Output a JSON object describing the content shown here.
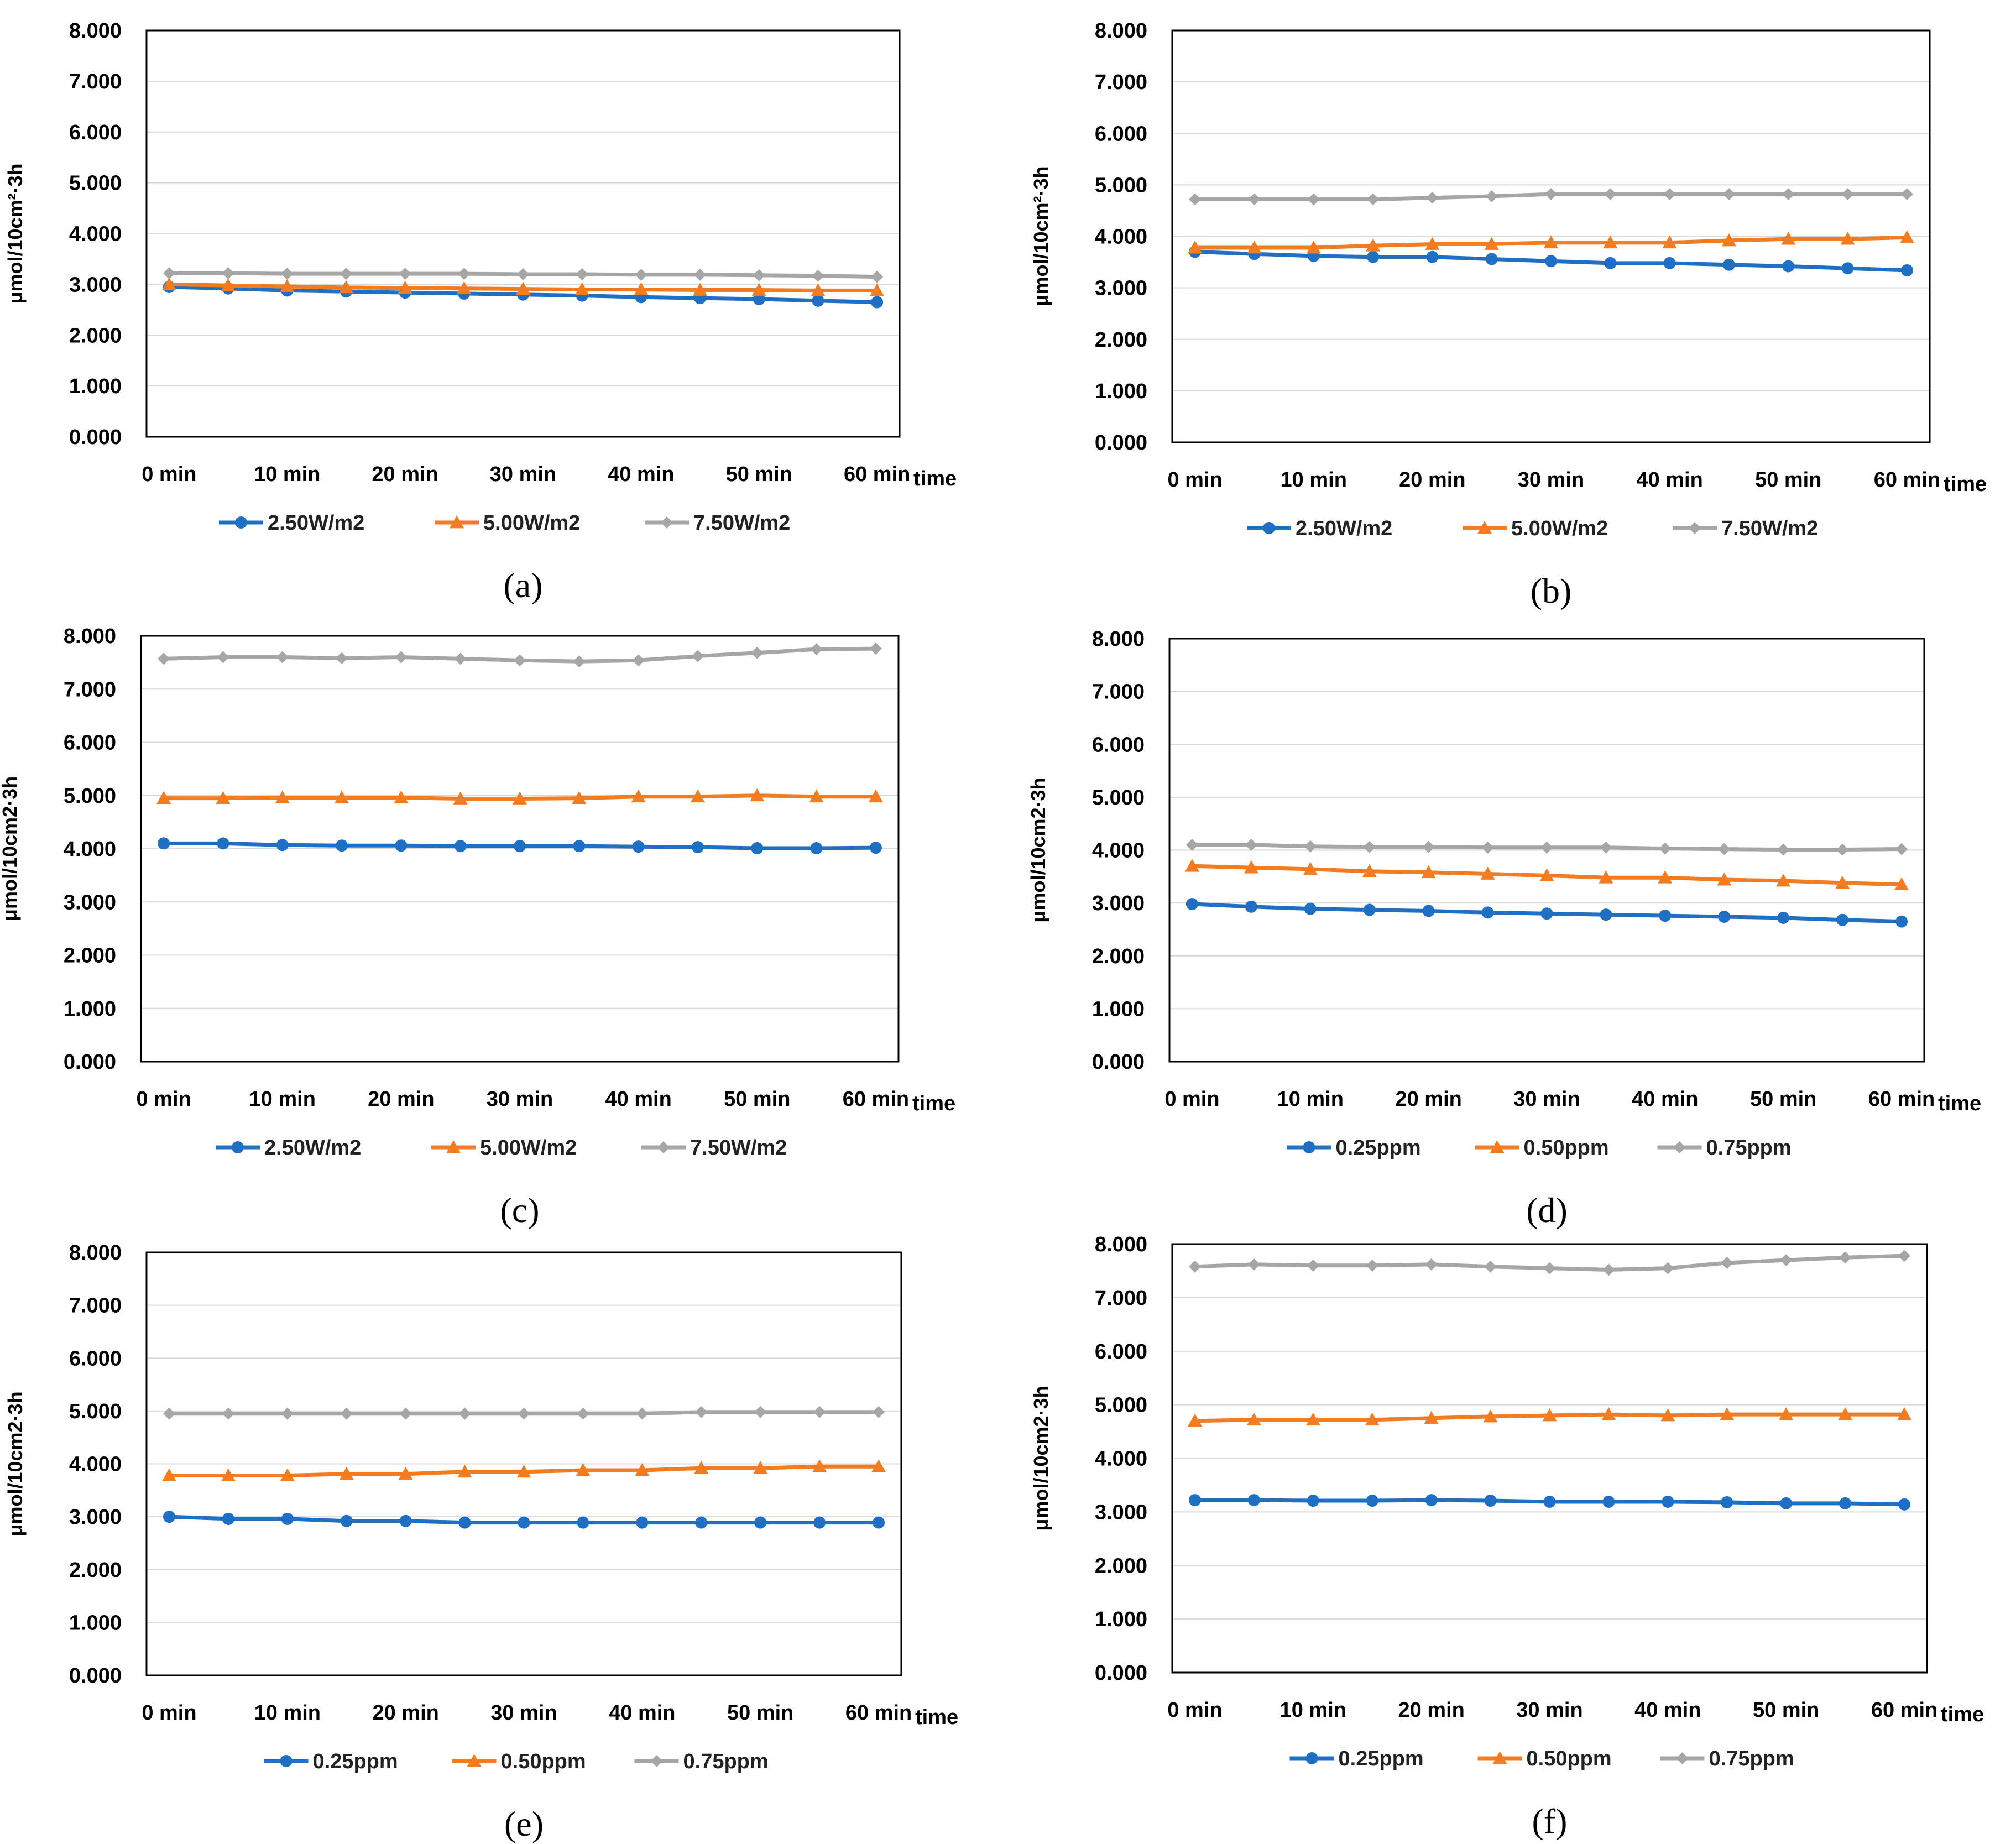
{
  "colors": {
    "blue": "#1f6fc5",
    "orange": "#f47c20",
    "gray": "#a6a6a6",
    "grid": "#d9d9d9",
    "frame": "#000000"
  },
  "chart_data": [
    {
      "caption": "(a)",
      "type": "line",
      "ylabel": "μmol/10cm²·3h",
      "xlabel": "time",
      "ylim": [
        0,
        8
      ],
      "yticks": [
        "0.000",
        "1.000",
        "2.000",
        "3.000",
        "4.000",
        "5.000",
        "6.000",
        "7.000",
        "8.000"
      ],
      "categories": [
        "0 min",
        "10 min",
        "20 min",
        "30 min",
        "40 min",
        "50 min",
        "60 min"
      ],
      "x": [
        0,
        5,
        10,
        15,
        20,
        25,
        30,
        35,
        40,
        45,
        50,
        55,
        60
      ],
      "series": [
        {
          "name": "2.50W/m2",
          "color": "blue",
          "marker": "circle",
          "values": [
            2.95,
            2.92,
            2.88,
            2.86,
            2.84,
            2.82,
            2.8,
            2.78,
            2.75,
            2.73,
            2.71,
            2.68,
            2.65
          ]
        },
        {
          "name": "5.00W/m2",
          "color": "orange",
          "marker": "triangle",
          "values": [
            3.0,
            2.98,
            2.96,
            2.94,
            2.93,
            2.92,
            2.91,
            2.9,
            2.9,
            2.89,
            2.89,
            2.88,
            2.88
          ]
        },
        {
          "name": "7.50W/m2",
          "color": "gray",
          "marker": "diamond",
          "values": [
            3.22,
            3.22,
            3.21,
            3.21,
            3.21,
            3.21,
            3.2,
            3.2,
            3.19,
            3.19,
            3.18,
            3.17,
            3.15
          ]
        }
      ]
    },
    {
      "caption": "(b)",
      "type": "line",
      "ylabel": "μmol/10cm²·3h",
      "xlabel": "time",
      "ylim": [
        0,
        8
      ],
      "yticks": [
        "0.000",
        "1.000",
        "2.000",
        "3.000",
        "4.000",
        "5.000",
        "6.000",
        "7.000",
        "8.000"
      ],
      "categories": [
        "0 min",
        "10 min",
        "20 min",
        "30 min",
        "40 min",
        "50 min",
        "60 min"
      ],
      "x": [
        0,
        5,
        10,
        15,
        20,
        25,
        30,
        35,
        40,
        45,
        50,
        55,
        60
      ],
      "series": [
        {
          "name": "2.50W/m2",
          "color": "blue",
          "marker": "circle",
          "values": [
            3.7,
            3.66,
            3.62,
            3.6,
            3.6,
            3.56,
            3.52,
            3.48,
            3.48,
            3.45,
            3.42,
            3.38,
            3.34
          ]
        },
        {
          "name": "5.00W/m2",
          "color": "orange",
          "marker": "triangle",
          "values": [
            3.78,
            3.78,
            3.78,
            3.82,
            3.85,
            3.85,
            3.88,
            3.88,
            3.88,
            3.92,
            3.95,
            3.95,
            3.98
          ]
        },
        {
          "name": "7.50W/m2",
          "color": "gray",
          "marker": "diamond",
          "values": [
            4.72,
            4.72,
            4.72,
            4.72,
            4.75,
            4.78,
            4.82,
            4.82,
            4.82,
            4.82,
            4.82,
            4.82,
            4.82
          ]
        }
      ]
    },
    {
      "caption": "(c)",
      "type": "line",
      "ylabel": "μmol/10cm2·3h",
      "xlabel": "time",
      "ylim": [
        0,
        8
      ],
      "yticks": [
        "0.000",
        "1.000",
        "2.000",
        "3.000",
        "4.000",
        "5.000",
        "6.000",
        "7.000",
        "8.000"
      ],
      "categories": [
        "0 min",
        "10 min",
        "20 min",
        "30 min",
        "40 min",
        "50 min",
        "60 min"
      ],
      "x": [
        0,
        5,
        10,
        15,
        20,
        25,
        30,
        35,
        40,
        45,
        50,
        55,
        60
      ],
      "series": [
        {
          "name": "2.50W/m2",
          "color": "blue",
          "marker": "circle",
          "values": [
            4.1,
            4.1,
            4.07,
            4.06,
            4.06,
            4.05,
            4.05,
            4.05,
            4.04,
            4.03,
            4.01,
            4.01,
            4.02
          ]
        },
        {
          "name": "5.00W/m2",
          "color": "orange",
          "marker": "triangle",
          "values": [
            4.95,
            4.95,
            4.96,
            4.96,
            4.96,
            4.94,
            4.94,
            4.95,
            4.98,
            4.98,
            5.0,
            4.98,
            4.98
          ]
        },
        {
          "name": "7.50W/m2",
          "color": "gray",
          "marker": "diamond",
          "values": [
            7.57,
            7.6,
            7.6,
            7.58,
            7.6,
            7.57,
            7.54,
            7.52,
            7.54,
            7.62,
            7.68,
            7.75,
            7.76
          ]
        }
      ]
    },
    {
      "caption": "(d)",
      "type": "line",
      "ylabel": "μmol/10cm2·3h",
      "xlabel": "time",
      "ylim": [
        0,
        8
      ],
      "yticks": [
        "0.000",
        "1.000",
        "2.000",
        "3.000",
        "4.000",
        "5.000",
        "6.000",
        "7.000",
        "8.000"
      ],
      "categories": [
        "0 min",
        "10 min",
        "20 min",
        "30 min",
        "40 min",
        "50 min",
        "60 min"
      ],
      "x": [
        0,
        5,
        10,
        15,
        20,
        25,
        30,
        35,
        40,
        45,
        50,
        55,
        60
      ],
      "series": [
        {
          "name": "0.25ppm",
          "color": "blue",
          "marker": "circle",
          "values": [
            2.98,
            2.93,
            2.89,
            2.87,
            2.85,
            2.82,
            2.8,
            2.78,
            2.76,
            2.74,
            2.72,
            2.68,
            2.65
          ]
        },
        {
          "name": "0.50ppm",
          "color": "orange",
          "marker": "triangle",
          "values": [
            3.7,
            3.67,
            3.64,
            3.6,
            3.58,
            3.55,
            3.52,
            3.48,
            3.48,
            3.44,
            3.42,
            3.38,
            3.35
          ]
        },
        {
          "name": "0.75ppm",
          "color": "gray",
          "marker": "diamond",
          "values": [
            4.1,
            4.1,
            4.07,
            4.06,
            4.06,
            4.05,
            4.05,
            4.05,
            4.03,
            4.02,
            4.01,
            4.01,
            4.02
          ]
        }
      ]
    },
    {
      "caption": "(e)",
      "type": "line",
      "ylabel": "μmol/10cm2·3h",
      "xlabel": "time",
      "ylim": [
        0,
        8
      ],
      "yticks": [
        "0.000",
        "1.000",
        "2.000",
        "3.000",
        "4.000",
        "5.000",
        "6.000",
        "7.000",
        "8.000"
      ],
      "categories": [
        "0 min",
        "10 min",
        "20 min",
        "30 min",
        "40 min",
        "50 min",
        "60 min"
      ],
      "x": [
        0,
        5,
        10,
        15,
        20,
        25,
        30,
        35,
        40,
        45,
        50,
        55,
        60
      ],
      "series": [
        {
          "name": "0.25ppm",
          "color": "blue",
          "marker": "circle",
          "values": [
            3.0,
            2.96,
            2.96,
            2.92,
            2.92,
            2.89,
            2.89,
            2.89,
            2.89,
            2.89,
            2.89,
            2.89,
            2.89
          ]
        },
        {
          "name": "0.50ppm",
          "color": "orange",
          "marker": "triangle",
          "values": [
            3.78,
            3.78,
            3.78,
            3.81,
            3.81,
            3.85,
            3.85,
            3.88,
            3.88,
            3.92,
            3.92,
            3.95,
            3.95
          ]
        },
        {
          "name": "0.75ppm",
          "color": "gray",
          "marker": "diamond",
          "values": [
            4.95,
            4.95,
            4.95,
            4.95,
            4.95,
            4.95,
            4.95,
            4.95,
            4.95,
            4.98,
            4.98,
            4.98,
            4.98
          ]
        }
      ]
    },
    {
      "caption": "(f)",
      "type": "line",
      "ylabel": "μmol/10cm2·3h",
      "xlabel": "time",
      "ylim": [
        0,
        8
      ],
      "yticks": [
        "0.000",
        "1.000",
        "2.000",
        "3.000",
        "4.000",
        "5.000",
        "6.000",
        "7.000",
        "8.000"
      ],
      "categories": [
        "0 min",
        "10 min",
        "20 min",
        "30 min",
        "40 min",
        "50 min",
        "60 min"
      ],
      "x": [
        0,
        5,
        10,
        15,
        20,
        25,
        30,
        35,
        40,
        45,
        50,
        55,
        60
      ],
      "series": [
        {
          "name": "0.25ppm",
          "color": "blue",
          "marker": "circle",
          "values": [
            3.22,
            3.22,
            3.21,
            3.21,
            3.22,
            3.21,
            3.19,
            3.19,
            3.19,
            3.18,
            3.16,
            3.16,
            3.14
          ]
        },
        {
          "name": "0.50ppm",
          "color": "orange",
          "marker": "triangle",
          "values": [
            4.7,
            4.72,
            4.72,
            4.72,
            4.75,
            4.78,
            4.8,
            4.82,
            4.8,
            4.82,
            4.82,
            4.82,
            4.82
          ]
        },
        {
          "name": "0.75ppm",
          "color": "gray",
          "marker": "diamond",
          "values": [
            7.58,
            7.62,
            7.6,
            7.6,
            7.62,
            7.58,
            7.55,
            7.52,
            7.55,
            7.65,
            7.7,
            7.75,
            7.78
          ]
        }
      ]
    }
  ]
}
